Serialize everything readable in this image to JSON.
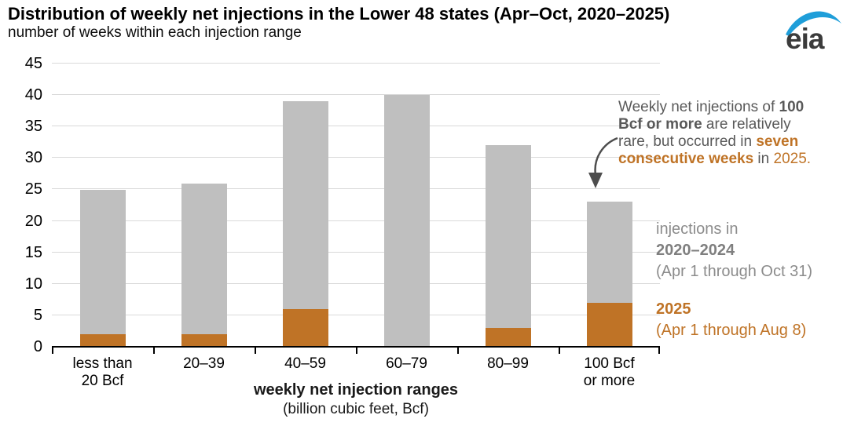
{
  "header": {
    "title": "Distribution of weekly net injections in the Lower 48 states (Apr–Oct, 2020–2025)",
    "subtitle": "number of weeks within each injection range",
    "logo_text": "eia"
  },
  "annotation": {
    "lines": [
      [
        {
          "t": "Weekly net injections of ",
          "s": "g"
        },
        {
          "t": "100",
          "s": "bg"
        }
      ],
      [
        {
          "t": "Bcf or more",
          "s": "bg"
        },
        {
          "t": " are relatively",
          "s": "g"
        }
      ],
      [
        {
          "t": "rare, but occurred in ",
          "s": "g"
        },
        {
          "t": "seven",
          "s": "bo"
        }
      ],
      [
        {
          "t": "consecutive weeks",
          "s": "bo"
        },
        {
          "t": " in ",
          "s": "g"
        },
        {
          "t": "2025.",
          "s": "o"
        }
      ]
    ]
  },
  "legend": {
    "gray": {
      "line1": "injections in",
      "line2": "2020–2024",
      "line3": "(Apr 1 through Oct 31)"
    },
    "orange": {
      "line1": "2025",
      "line2": "(Apr 1 through Aug 8)"
    }
  },
  "chart_data": {
    "type": "bar",
    "stacked": true,
    "title": "Distribution of weekly net injections in the Lower 48 states (Apr–Oct, 2020–2025)",
    "subtitle": "number of weeks within each injection range",
    "categories": [
      [
        "less than",
        "20 Bcf"
      ],
      [
        "20–39"
      ],
      [
        "40–59"
      ],
      [
        "60–79"
      ],
      [
        "80–99"
      ],
      [
        "100 Bcf",
        "or more"
      ]
    ],
    "series": [
      {
        "name": "2025 (Apr 1 through Aug 8)",
        "color": "#bf7326",
        "values": [
          2,
          2,
          6,
          0,
          3,
          7
        ]
      },
      {
        "name": "injections in 2020–2024 (Apr 1 through Oct 31)",
        "color": "#bfbfbf",
        "values": [
          23,
          24,
          33,
          40,
          29,
          16
        ]
      }
    ],
    "totals": [
      25,
      26,
      39,
      40,
      32,
      23
    ],
    "xlabel": "weekly net injection ranges",
    "xlabel_sub": "(billion cubic feet, Bcf)",
    "ylabel": "number of weeks",
    "ylim": [
      0,
      45
    ],
    "yticks": [
      0,
      5,
      10,
      15,
      20,
      25,
      30,
      35,
      40,
      45
    ],
    "grid": true,
    "legend_position": "right"
  },
  "colors": {
    "bar_orange": "#bf7326",
    "bar_gray": "#bfbfbf",
    "gridline": "#d9d9d9",
    "axis": "#000000",
    "annotation_gray": "#595959",
    "legend_gray": "#8c8c8c",
    "logo_blue": "#1f9ed9",
    "logo_text": "#3b3b3b"
  }
}
